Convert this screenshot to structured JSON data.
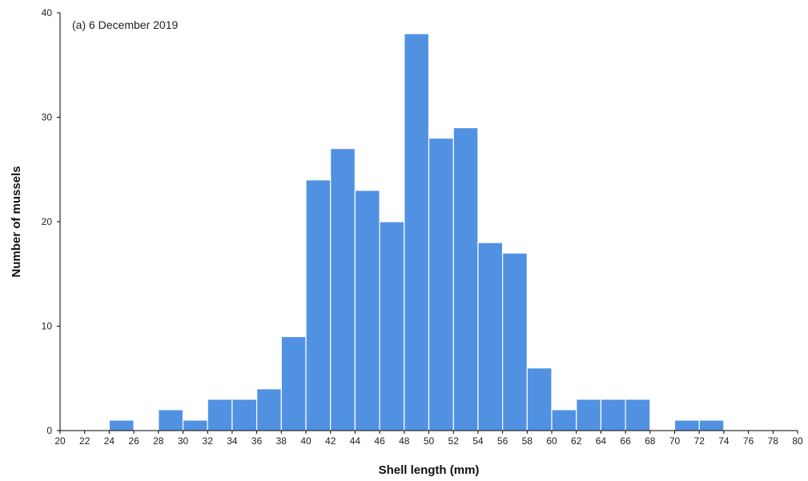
{
  "chart_data": {
    "type": "bar",
    "panel_label": "(a) 6 December 2019",
    "xlabel": "Shell length (mm)",
    "ylabel": "Number of mussels",
    "xlim": [
      20,
      80
    ],
    "ylim": [
      0,
      40
    ],
    "bin_width": 2,
    "x_ticks": [
      "20",
      "22",
      "24",
      "26",
      "28",
      "30",
      "32",
      "34",
      "36",
      "38",
      "40",
      "42",
      "44",
      "46",
      "48",
      "50",
      "52",
      "54",
      "56",
      "58",
      "60",
      "62",
      "64",
      "66",
      "68",
      "70",
      "72",
      "74",
      "76",
      "78",
      "80"
    ],
    "y_ticks": [
      "0",
      "10",
      "20",
      "30",
      "40"
    ],
    "bins": [
      {
        "start": 24,
        "end": 26,
        "count": 1
      },
      {
        "start": 28,
        "end": 30,
        "count": 2
      },
      {
        "start": 30,
        "end": 32,
        "count": 1
      },
      {
        "start": 32,
        "end": 34,
        "count": 3
      },
      {
        "start": 34,
        "end": 36,
        "count": 3
      },
      {
        "start": 36,
        "end": 38,
        "count": 4
      },
      {
        "start": 38,
        "end": 40,
        "count": 9
      },
      {
        "start": 40,
        "end": 42,
        "count": 24
      },
      {
        "start": 42,
        "end": 44,
        "count": 27
      },
      {
        "start": 44,
        "end": 46,
        "count": 23
      },
      {
        "start": 46,
        "end": 48,
        "count": 20
      },
      {
        "start": 48,
        "end": 50,
        "count": 38
      },
      {
        "start": 50,
        "end": 52,
        "count": 28
      },
      {
        "start": 52,
        "end": 54,
        "count": 29
      },
      {
        "start": 54,
        "end": 56,
        "count": 18
      },
      {
        "start": 56,
        "end": 58,
        "count": 17
      },
      {
        "start": 58,
        "end": 60,
        "count": 6
      },
      {
        "start": 60,
        "end": 62,
        "count": 2
      },
      {
        "start": 62,
        "end": 64,
        "count": 3
      },
      {
        "start": 64,
        "end": 66,
        "count": 3
      },
      {
        "start": 66,
        "end": 68,
        "count": 3
      },
      {
        "start": 70,
        "end": 72,
        "count": 1
      },
      {
        "start": 72,
        "end": 74,
        "count": 1
      }
    ],
    "bar_color": "#5191e2",
    "bar_edge_color": "#ffffff",
    "axis_color": "#000000",
    "grid": false
  }
}
